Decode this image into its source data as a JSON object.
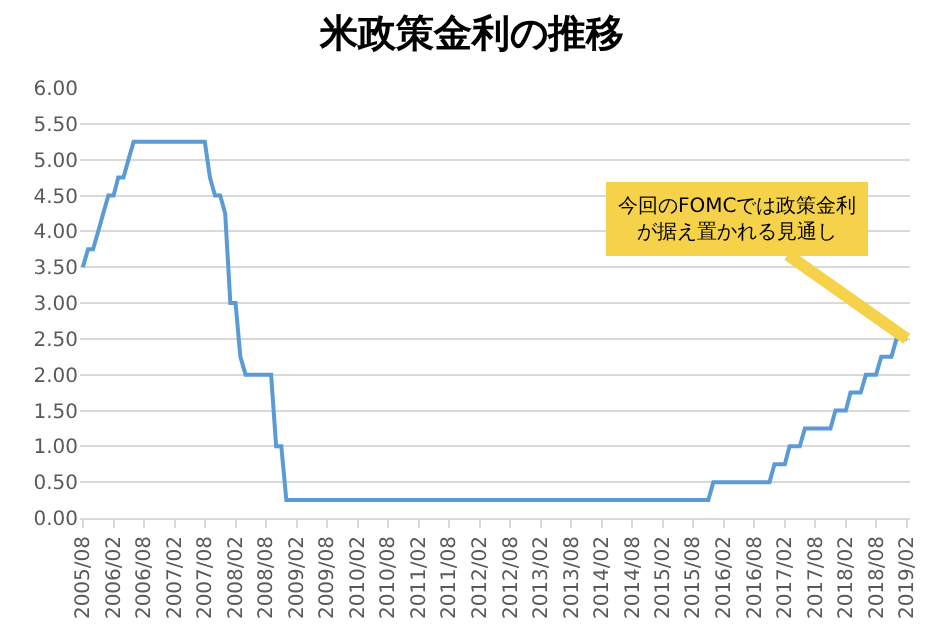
{
  "chart_data": {
    "type": "line",
    "title": "米政策金利の推移",
    "x": [
      "2005-08",
      "2005-09",
      "2005-10",
      "2005-11",
      "2005-12",
      "2006-01",
      "2006-02",
      "2006-03",
      "2006-04",
      "2006-05",
      "2006-06",
      "2007-08",
      "2007-09",
      "2007-10",
      "2007-11",
      "2007-12",
      "2008-01",
      "2008-02",
      "2008-03",
      "2008-04",
      "2008-09",
      "2008-10",
      "2008-11",
      "2008-12",
      "2015-11",
      "2015-12",
      "2016-11",
      "2016-12",
      "2017-02",
      "2017-03",
      "2017-05",
      "2017-06",
      "2017-11",
      "2017-12",
      "2018-02",
      "2018-03",
      "2018-05",
      "2018-06",
      "2018-08",
      "2018-09",
      "2018-11",
      "2018-12",
      "2019-02"
    ],
    "series": [
      {
        "color": "#5b9bd5",
        "values": [
          3.5,
          3.75,
          3.75,
          4.0,
          4.25,
          4.5,
          4.5,
          4.75,
          4.75,
          5.0,
          5.25,
          5.25,
          4.75,
          4.5,
          4.5,
          4.25,
          3.0,
          3.0,
          2.25,
          2.0,
          2.0,
          1.0,
          1.0,
          0.25,
          0.25,
          0.5,
          0.5,
          0.75,
          0.75,
          1.0,
          1.0,
          1.25,
          1.25,
          1.5,
          1.5,
          1.75,
          1.75,
          2.0,
          2.0,
          2.25,
          2.25,
          2.5,
          2.5
        ]
      }
    ],
    "xlim": [
      "2005-07-15",
      "2019-02-20"
    ],
    "xticks": [
      {
        "value": "2005-08",
        "label": "2005/08"
      },
      {
        "value": "2006-02",
        "label": "2006/02"
      },
      {
        "value": "2006-08",
        "label": "2006/08"
      },
      {
        "value": "2007-02",
        "label": "2007/02"
      },
      {
        "value": "2007-08",
        "label": "2007/08"
      },
      {
        "value": "2008-02",
        "label": "2008/02"
      },
      {
        "value": "2008-08",
        "label": "2008/08"
      },
      {
        "value": "2009-02",
        "label": "2009/02"
      },
      {
        "value": "2009-08",
        "label": "2009/08"
      },
      {
        "value": "2010-02",
        "label": "2010/02"
      },
      {
        "value": "2010-08",
        "label": "2010/08"
      },
      {
        "value": "2011-02",
        "label": "2011/02"
      },
      {
        "value": "2011-08",
        "label": "2011/08"
      },
      {
        "value": "2012-02",
        "label": "2012/02"
      },
      {
        "value": "2012-08",
        "label": "2012/08"
      },
      {
        "value": "2013-02",
        "label": "2013/02"
      },
      {
        "value": "2013-08",
        "label": "2013/08"
      },
      {
        "value": "2014-02",
        "label": "2014/02"
      },
      {
        "value": "2014-08",
        "label": "2014/08"
      },
      {
        "value": "2015-02",
        "label": "2015/02"
      },
      {
        "value": "2015-08",
        "label": "2015/08"
      },
      {
        "value": "2016-02",
        "label": "2016/02"
      },
      {
        "value": "2016-08",
        "label": "2016/08"
      },
      {
        "value": "2017-02",
        "label": "2017/02"
      },
      {
        "value": "2017-08",
        "label": "2017/08"
      },
      {
        "value": "2018-02",
        "label": "2018/02"
      },
      {
        "value": "2018-08",
        "label": "2018/08"
      },
      {
        "value": "2019-02",
        "label": "2019/02"
      }
    ],
    "ylim": [
      0,
      6
    ],
    "yticks": [
      {
        "value": 0,
        "label": "0.00"
      },
      {
        "value": 0.5,
        "label": "0.50"
      },
      {
        "value": 1,
        "label": "1.00"
      },
      {
        "value": 1.5,
        "label": "1.50"
      },
      {
        "value": 2,
        "label": "2.00"
      },
      {
        "value": 2.5,
        "label": "2.50"
      },
      {
        "value": 3,
        "label": "3.00"
      },
      {
        "value": 3.5,
        "label": "3.50"
      },
      {
        "value": 4,
        "label": "4.00"
      },
      {
        "value": 4.5,
        "label": "4.50"
      },
      {
        "value": 5,
        "label": "5.00"
      },
      {
        "value": 5.5,
        "label": "5.50"
      },
      {
        "value": 6,
        "label": "6.00"
      }
    ],
    "grid": "y",
    "marker": "none",
    "line_style": "solid",
    "annotations": [
      {
        "text": "今回のFOMCでは政策金利が据え置かれる見通し",
        "x": "2019-02",
        "y": 2.5
      }
    ]
  }
}
